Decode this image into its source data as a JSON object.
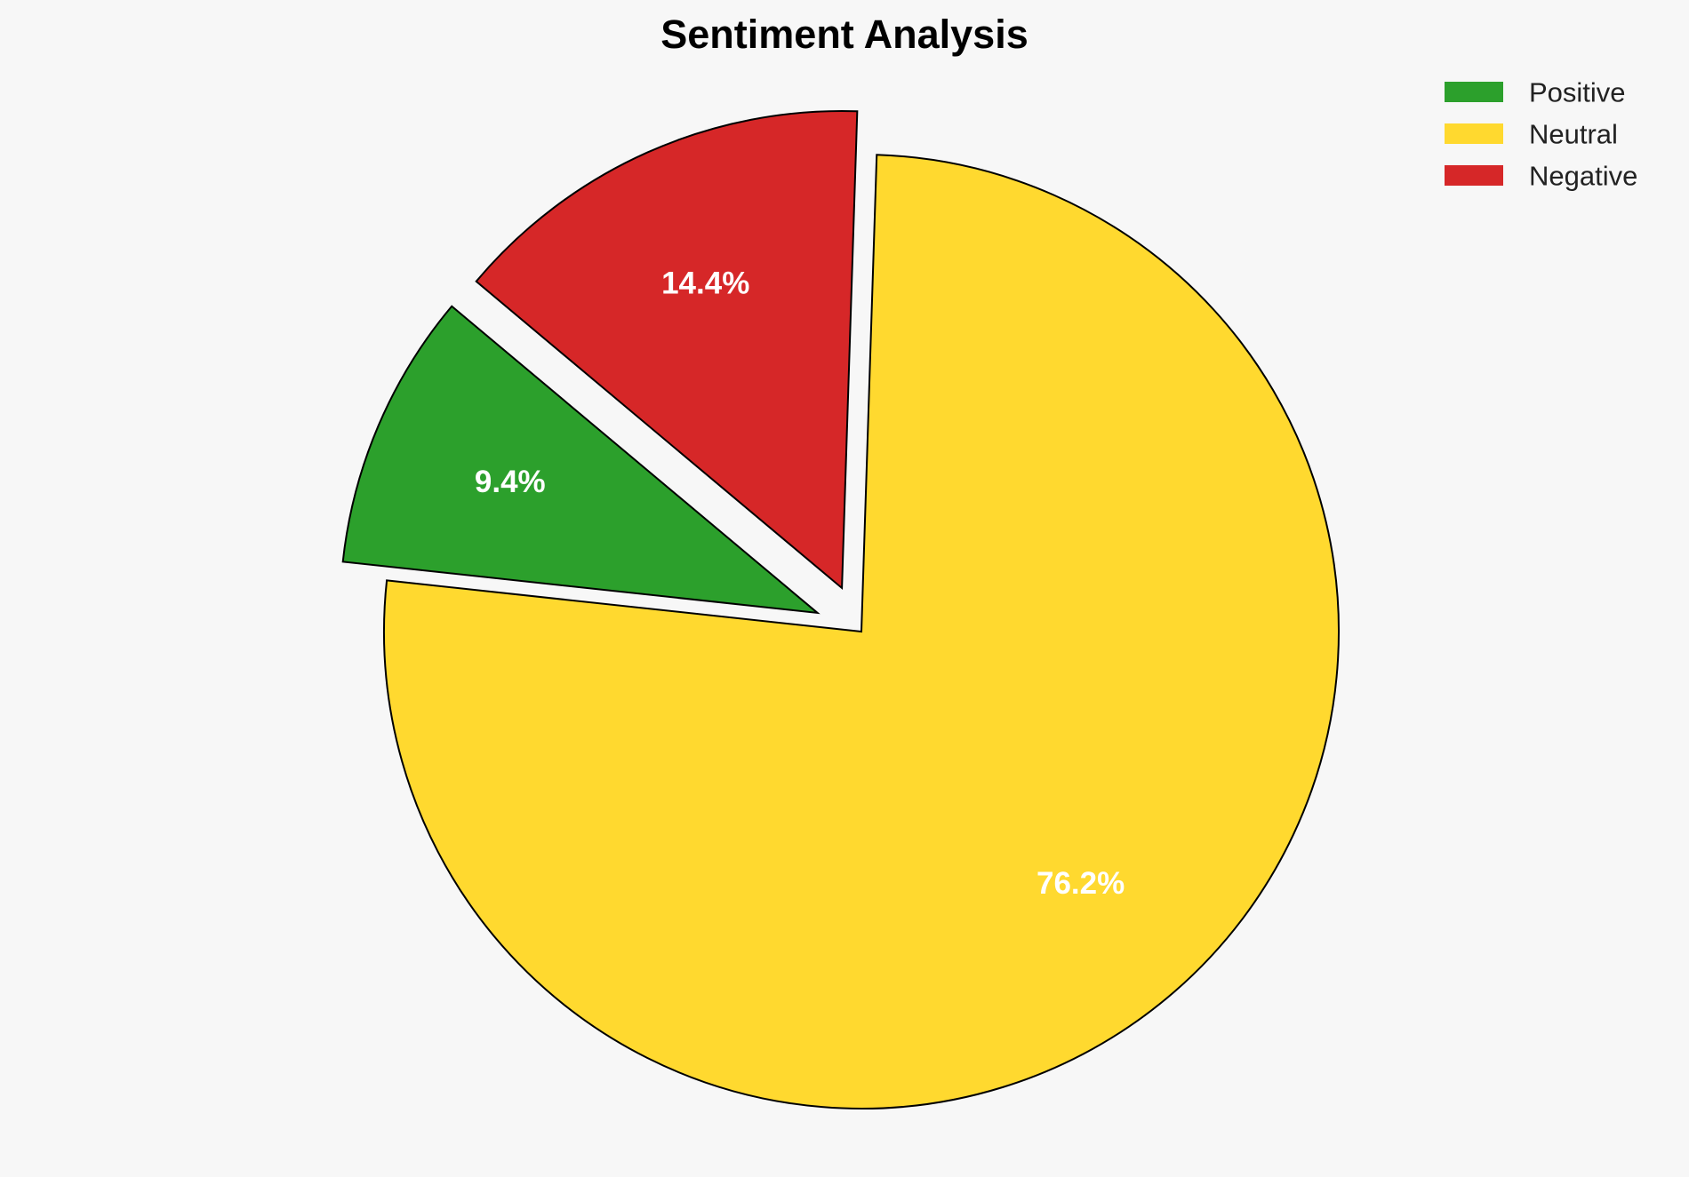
{
  "chart_data": {
    "type": "pie",
    "title": "Sentiment Analysis",
    "categories": [
      "Positive",
      "Neutral",
      "Negative"
    ],
    "values": [
      9.4,
      76.2,
      14.4
    ],
    "labels": [
      "9.4%",
      "76.2%",
      "14.4%"
    ],
    "colors": [
      "#2ca02c",
      "#ffd92f",
      "#d62728"
    ],
    "exploded": [
      true,
      false,
      true
    ],
    "start_angle_deg": 140,
    "direction": "counterclockwise",
    "edge_color": "#000000",
    "legend_placement": "top-right",
    "background": "#f7f7f7"
  }
}
